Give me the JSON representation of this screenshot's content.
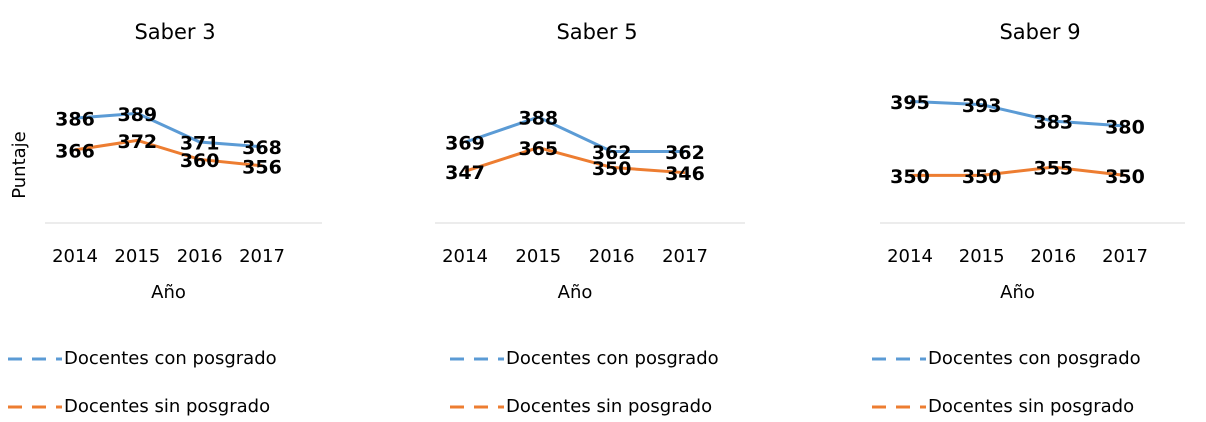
{
  "chart_data": [
    {
      "type": "line",
      "title": "Saber 3",
      "x_label": "Año",
      "y_label": "Puntaje",
      "categories": [
        "2014",
        "2015",
        "2016",
        "2017"
      ],
      "ylim": [
        320,
        410
      ],
      "series": [
        {
          "name": "Docentes con posgrado",
          "color": "#5b9bd5",
          "values": [
            386,
            389,
            371,
            368
          ]
        },
        {
          "name": "Docentes sin posgrado",
          "color": "#ed7d31",
          "values": [
            366,
            372,
            360,
            356
          ]
        }
      ]
    },
    {
      "type": "line",
      "title": "Saber 5",
      "x_label": "Año",
      "categories": [
        "2014",
        "2015",
        "2016",
        "2017"
      ],
      "ylim": [
        308,
        416
      ],
      "series": [
        {
          "name": "Docentes con posgrado",
          "color": "#5b9bd5",
          "values": [
            369,
            388,
            362,
            362
          ]
        },
        {
          "name": "Docentes sin posgrado",
          "color": "#ed7d31",
          "values": [
            347,
            365,
            350,
            346
          ]
        }
      ]
    },
    {
      "type": "line",
      "title": "Saber 9",
      "x_label": "Año",
      "categories": [
        "2014",
        "2015",
        "2016",
        "2017"
      ],
      "ylim": [
        321,
        408
      ],
      "series": [
        {
          "name": "Docentes con posgrado",
          "color": "#5b9bd5",
          "values": [
            395,
            393,
            383,
            380
          ]
        },
        {
          "name": "Docentes sin posgrado",
          "color": "#ed7d31",
          "values": [
            350,
            350,
            355,
            350
          ]
        }
      ]
    }
  ]
}
